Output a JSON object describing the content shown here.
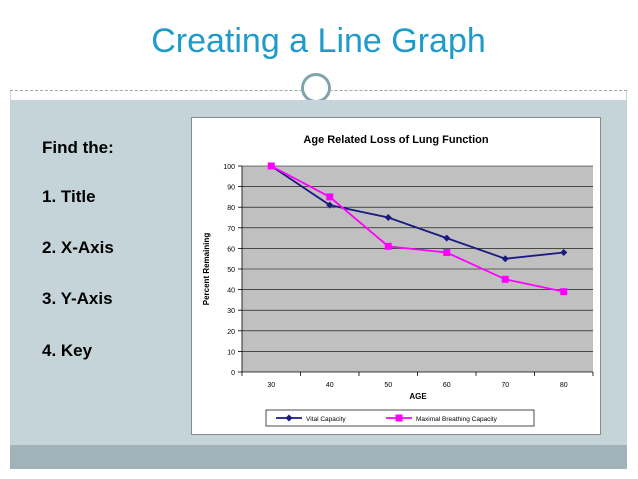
{
  "slide": {
    "title": "Creating a Line Graph",
    "bullets": [
      "Find the:",
      "1.  Title",
      "2. X-Axis",
      "3. Y-Axis",
      "4. Key"
    ]
  },
  "colors": {
    "title": "#1f9bc9",
    "plot_bg": "#c0c0c0",
    "vital_capacity": "#1a1a80",
    "maximal_breathing_capacity": "#ff00ff"
  },
  "chart_data": {
    "type": "line",
    "title": "Age Related Loss of Lung Function",
    "xlabel": "AGE",
    "ylabel": "Percent Remaining",
    "x": [
      30,
      40,
      50,
      60,
      70,
      80
    ],
    "x_tick_labels": [
      "30",
      "40",
      "50",
      "60",
      "70",
      "80"
    ],
    "y_tick_labels": [
      "0",
      "10",
      "20",
      "30",
      "40",
      "50",
      "60",
      "70",
      "80",
      "90",
      "100"
    ],
    "ylim": [
      0,
      100
    ],
    "grid": true,
    "legend_position": "bottom",
    "series": [
      {
        "name": "Vital Capacity",
        "values": [
          100,
          81,
          75,
          65,
          55,
          58
        ],
        "marker": "diamond"
      },
      {
        "name": "Maximal Breathing Capacity",
        "values": [
          100,
          85,
          61,
          58,
          45,
          39
        ],
        "marker": "square"
      }
    ]
  }
}
